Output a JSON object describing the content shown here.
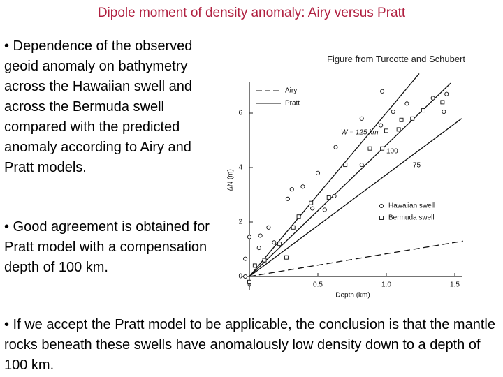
{
  "title": "Dipole moment of density anomaly: Airy versus Pratt",
  "bullets": [
    "• Dependence of the observed geoid anomaly on bathymetry across the Hawaiian swell and across the Bermuda swell compared with the predicted anomaly according to Airy and Pratt models.",
    "• Good agreement is obtained for Pratt model with a compensation depth of 100 km.",
    "• If we accept the Pratt model to be applicable, the conclusion is that the mantle rocks beneath these swells have anomalously low density down to a depth of 100 km."
  ],
  "figure_credit": "Figure from Turcotte and Schubert",
  "chart_data": {
    "type": "scatter",
    "xlabel": "Depth (km)",
    "ylabel": "ΔN (m)",
    "xlim": [
      -0.05,
      1.55
    ],
    "ylim": [
      -0.3,
      7.4
    ],
    "xticks": [
      0,
      {
        "value": 0.5,
        "label": "0.5"
      },
      {
        "value": 1.0,
        "label": "1.0"
      },
      1.5
    ],
    "yticks": [
      0,
      2,
      4,
      6
    ],
    "airy": {
      "name": "Airy",
      "x": [
        0,
        1.56
      ],
      "y": [
        0,
        1.3
      ]
    },
    "pratt": {
      "name": "Pratt",
      "curves": [
        {
          "label": "W = 125 km",
          "x": [
            0,
            1.24
          ],
          "y": [
            0,
            7.45
          ]
        },
        {
          "label": "100",
          "x": [
            0,
            1.47
          ],
          "y": [
            0,
            7.1
          ]
        },
        {
          "label": "75",
          "x": [
            0,
            1.55
          ],
          "y": [
            0,
            5.8
          ]
        }
      ]
    },
    "series": [
      {
        "name": "Hawaiian swell",
        "marker": "circle",
        "x": [
          0.97,
          1.05,
          1.15,
          1.34,
          1.44,
          1.42,
          0.82,
          0.96,
          0.63,
          0.82,
          0.5,
          0.39,
          0.31,
          0.46,
          0.55,
          0.14,
          0.08,
          0,
          0.07,
          -0.03,
          -0.03,
          0.18,
          0.28,
          0.62
        ],
        "y": [
          6.8,
          6.05,
          6.35,
          6.55,
          6.7,
          6.05,
          5.8,
          5.55,
          4.75,
          4.1,
          3.8,
          3.3,
          3.2,
          2.5,
          2.45,
          1.8,
          1.5,
          1.45,
          1.05,
          0.65,
          0,
          1.25,
          2.85,
          2.95
        ]
      },
      {
        "name": "Bermuda swell",
        "marker": "square",
        "x": [
          0,
          0.04,
          0.11,
          0.27,
          0.22,
          0.32,
          0.36,
          0.45,
          0.58,
          0.7,
          0.88,
          0.97,
          1.0,
          1.09,
          1.11,
          1.19,
          1.27,
          1.41
        ],
        "y": [
          -0.2,
          0.4,
          0.6,
          0.7,
          1.2,
          1.8,
          2.2,
          2.7,
          2.9,
          4.1,
          4.7,
          4.7,
          5.35,
          5.4,
          5.75,
          5.8,
          6.1,
          6.4
        ]
      }
    ]
  }
}
